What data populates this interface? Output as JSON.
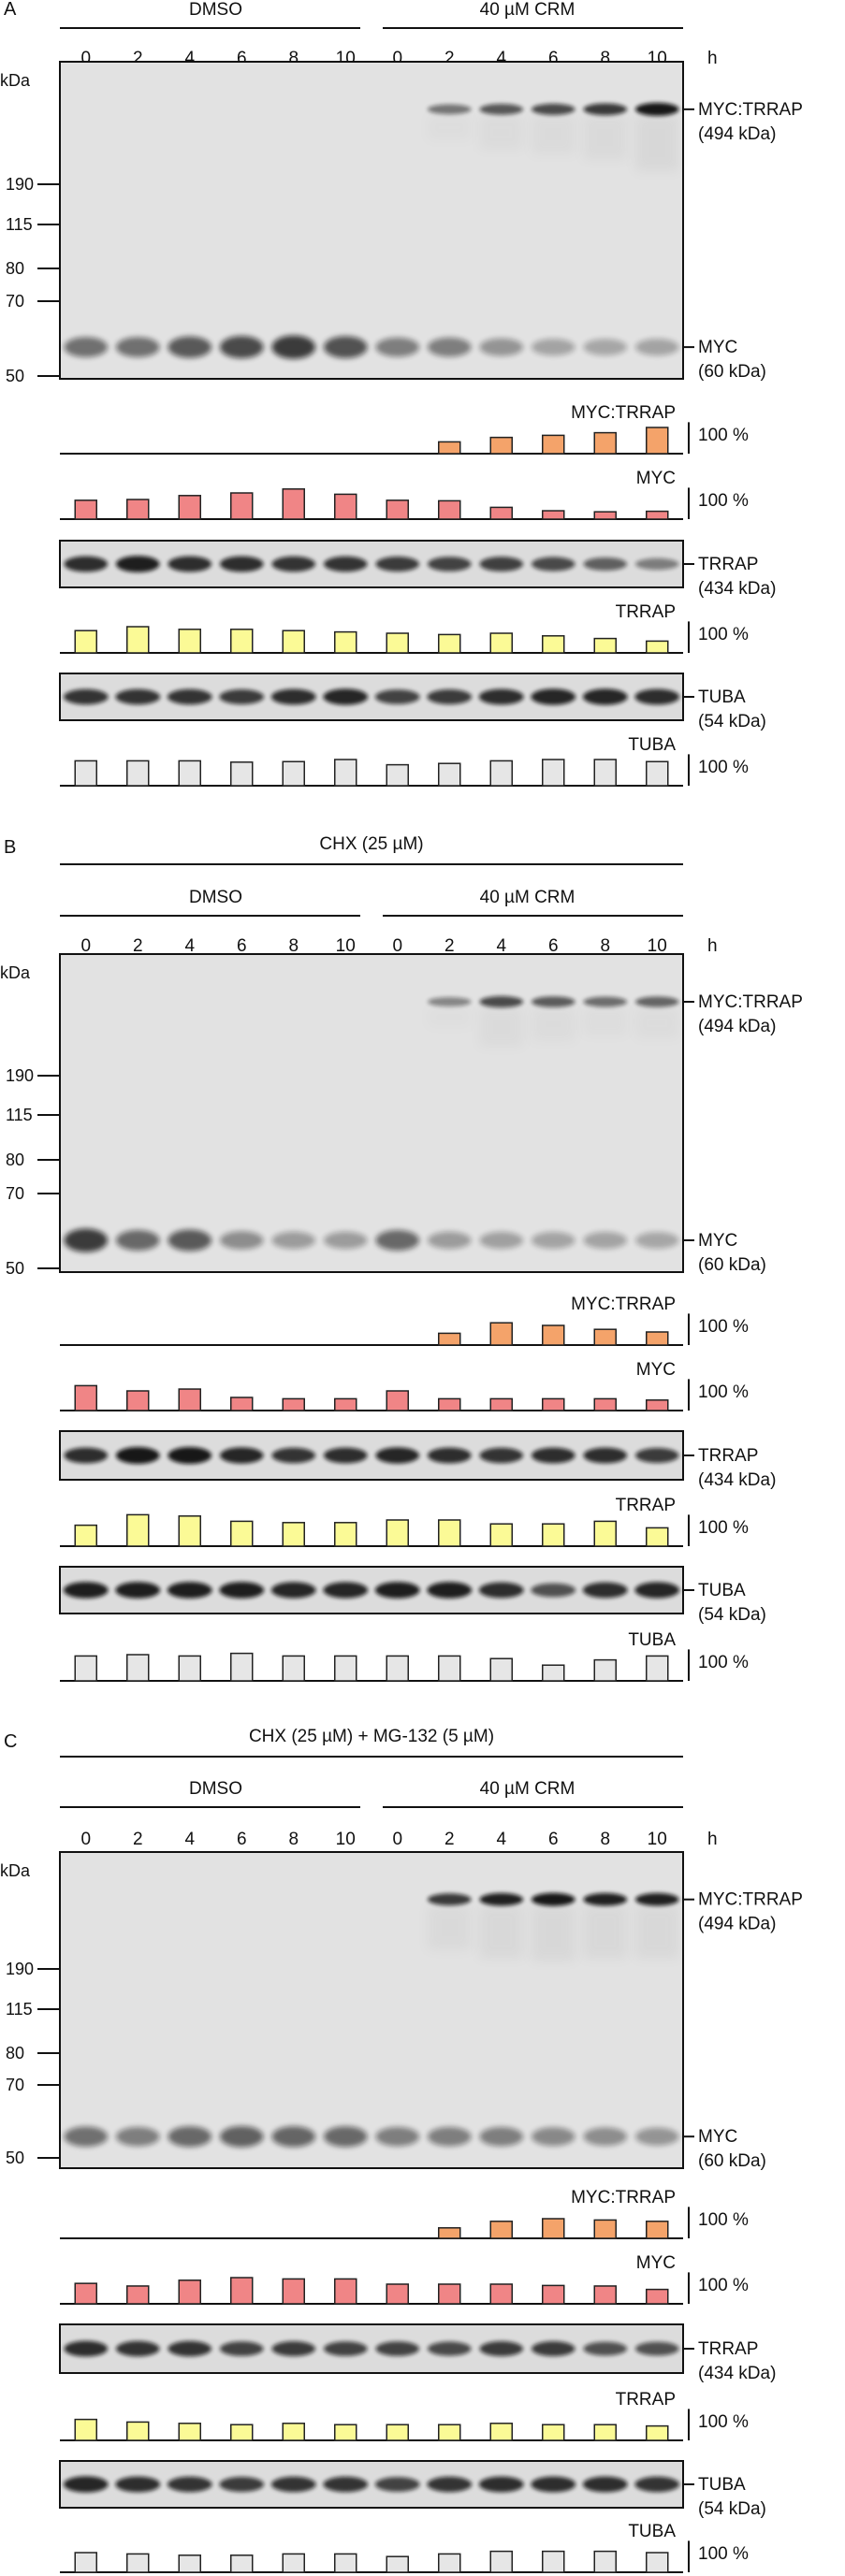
{
  "figure": {
    "lanes": [
      "0",
      "2",
      "4",
      "6",
      "8",
      "10"
    ],
    "time_unit": "h",
    "kda_label": "kDa",
    "markers": [
      "190",
      "115",
      "80",
      "70",
      "50"
    ],
    "percent_label": "100 %",
    "colors": {
      "myc_trrap": "#f4a36a",
      "myc": "#f08586",
      "trrap": "#fbfa96",
      "tuba": "#e6e6e6",
      "bar_stroke": "#222222"
    }
  },
  "panels": [
    {
      "letter": "A",
      "treatment": "",
      "group_left": "DMSO",
      "group_right": "40 µM CRM",
      "blots": {
        "main": {
          "upper_label": "MYC:TRRAP",
          "upper_sub": "(494 kDa)",
          "lower_label": "MYC",
          "lower_sub": "(60 kDa)"
        },
        "trrap": {
          "label": "TRRAP",
          "sub": "(434 kDa)"
        },
        "tuba": {
          "label": "TUBA",
          "sub": "(54 kDa)"
        }
      },
      "quant": {
        "myc_trrap": {
          "title": "MYC:TRRAP",
          "values": [
            0,
            0,
            0,
            0,
            0,
            0,
            0,
            45,
            62,
            70,
            80,
            100
          ]
        },
        "myc": {
          "title": "MYC",
          "values": [
            72,
            75,
            90,
            100,
            115,
            95,
            72,
            70,
            45,
            32,
            28,
            30
          ]
        },
        "trrap": {
          "title": "TRRAP",
          "values": [
            85,
            100,
            90,
            90,
            85,
            80,
            75,
            70,
            75,
            65,
            55,
            45
          ]
        },
        "tuba": {
          "title": "TUBA",
          "values": [
            95,
            95,
            95,
            90,
            92,
            100,
            80,
            85,
            95,
            100,
            100,
            92
          ]
        }
      }
    },
    {
      "letter": "B",
      "treatment": "CHX (25 µM)",
      "group_left": "DMSO",
      "group_right": "40 µM CRM",
      "blots": {
        "main": {
          "upper_label": "MYC:TRRAP",
          "upper_sub": "(494 kDa)",
          "lower_label": "MYC",
          "lower_sub": "(60 kDa)"
        },
        "trrap": {
          "label": "TRRAP",
          "sub": "(434 kDa)"
        },
        "tuba": {
          "label": "TUBA",
          "sub": "(54 kDa)"
        }
      },
      "quant": {
        "myc_trrap": {
          "title": "MYC:TRRAP",
          "values": [
            0,
            0,
            0,
            0,
            0,
            0,
            0,
            45,
            85,
            75,
            60,
            50
          ]
        },
        "myc": {
          "title": "MYC",
          "values": [
            95,
            75,
            82,
            50,
            45,
            45,
            75,
            45,
            45,
            45,
            45,
            40
          ]
        },
        "trrap": {
          "title": "TRRAP",
          "values": [
            80,
            120,
            115,
            95,
            90,
            90,
            100,
            100,
            85,
            85,
            95,
            70
          ]
        },
        "tuba": {
          "title": "TUBA",
          "values": [
            95,
            100,
            95,
            105,
            95,
            95,
            95,
            95,
            85,
            60,
            80,
            95
          ]
        }
      }
    },
    {
      "letter": "C",
      "treatment": "CHX (25 µM) + MG-132 (5 µM)",
      "group_left": "DMSO",
      "group_right": "40 µM CRM",
      "blots": {
        "main": {
          "upper_label": "MYC:TRRAP",
          "upper_sub": "(494 kDa)",
          "lower_label": "MYC",
          "lower_sub": "(60 kDa)"
        },
        "trrap": {
          "label": "TRRAP",
          "sub": "(434 kDa)"
        },
        "tuba": {
          "label": "TUBA",
          "sub": "(54 kDa)"
        }
      },
      "quant": {
        "myc_trrap": {
          "title": "MYC:TRRAP",
          "values": [
            0,
            0,
            0,
            0,
            0,
            0,
            0,
            40,
            65,
            75,
            70,
            65
          ]
        },
        "myc": {
          "title": "MYC",
          "values": [
            78,
            68,
            90,
            100,
            95,
            95,
            75,
            75,
            75,
            70,
            68,
            55
          ]
        },
        "trrap": {
          "title": "TRRAP",
          "values": [
            80,
            70,
            65,
            60,
            65,
            60,
            60,
            60,
            65,
            60,
            60,
            55
          ]
        },
        "tuba": {
          "title": "TUBA",
          "values": [
            75,
            70,
            65,
            65,
            70,
            70,
            60,
            70,
            80,
            80,
            80,
            75
          ]
        }
      }
    }
  ]
}
